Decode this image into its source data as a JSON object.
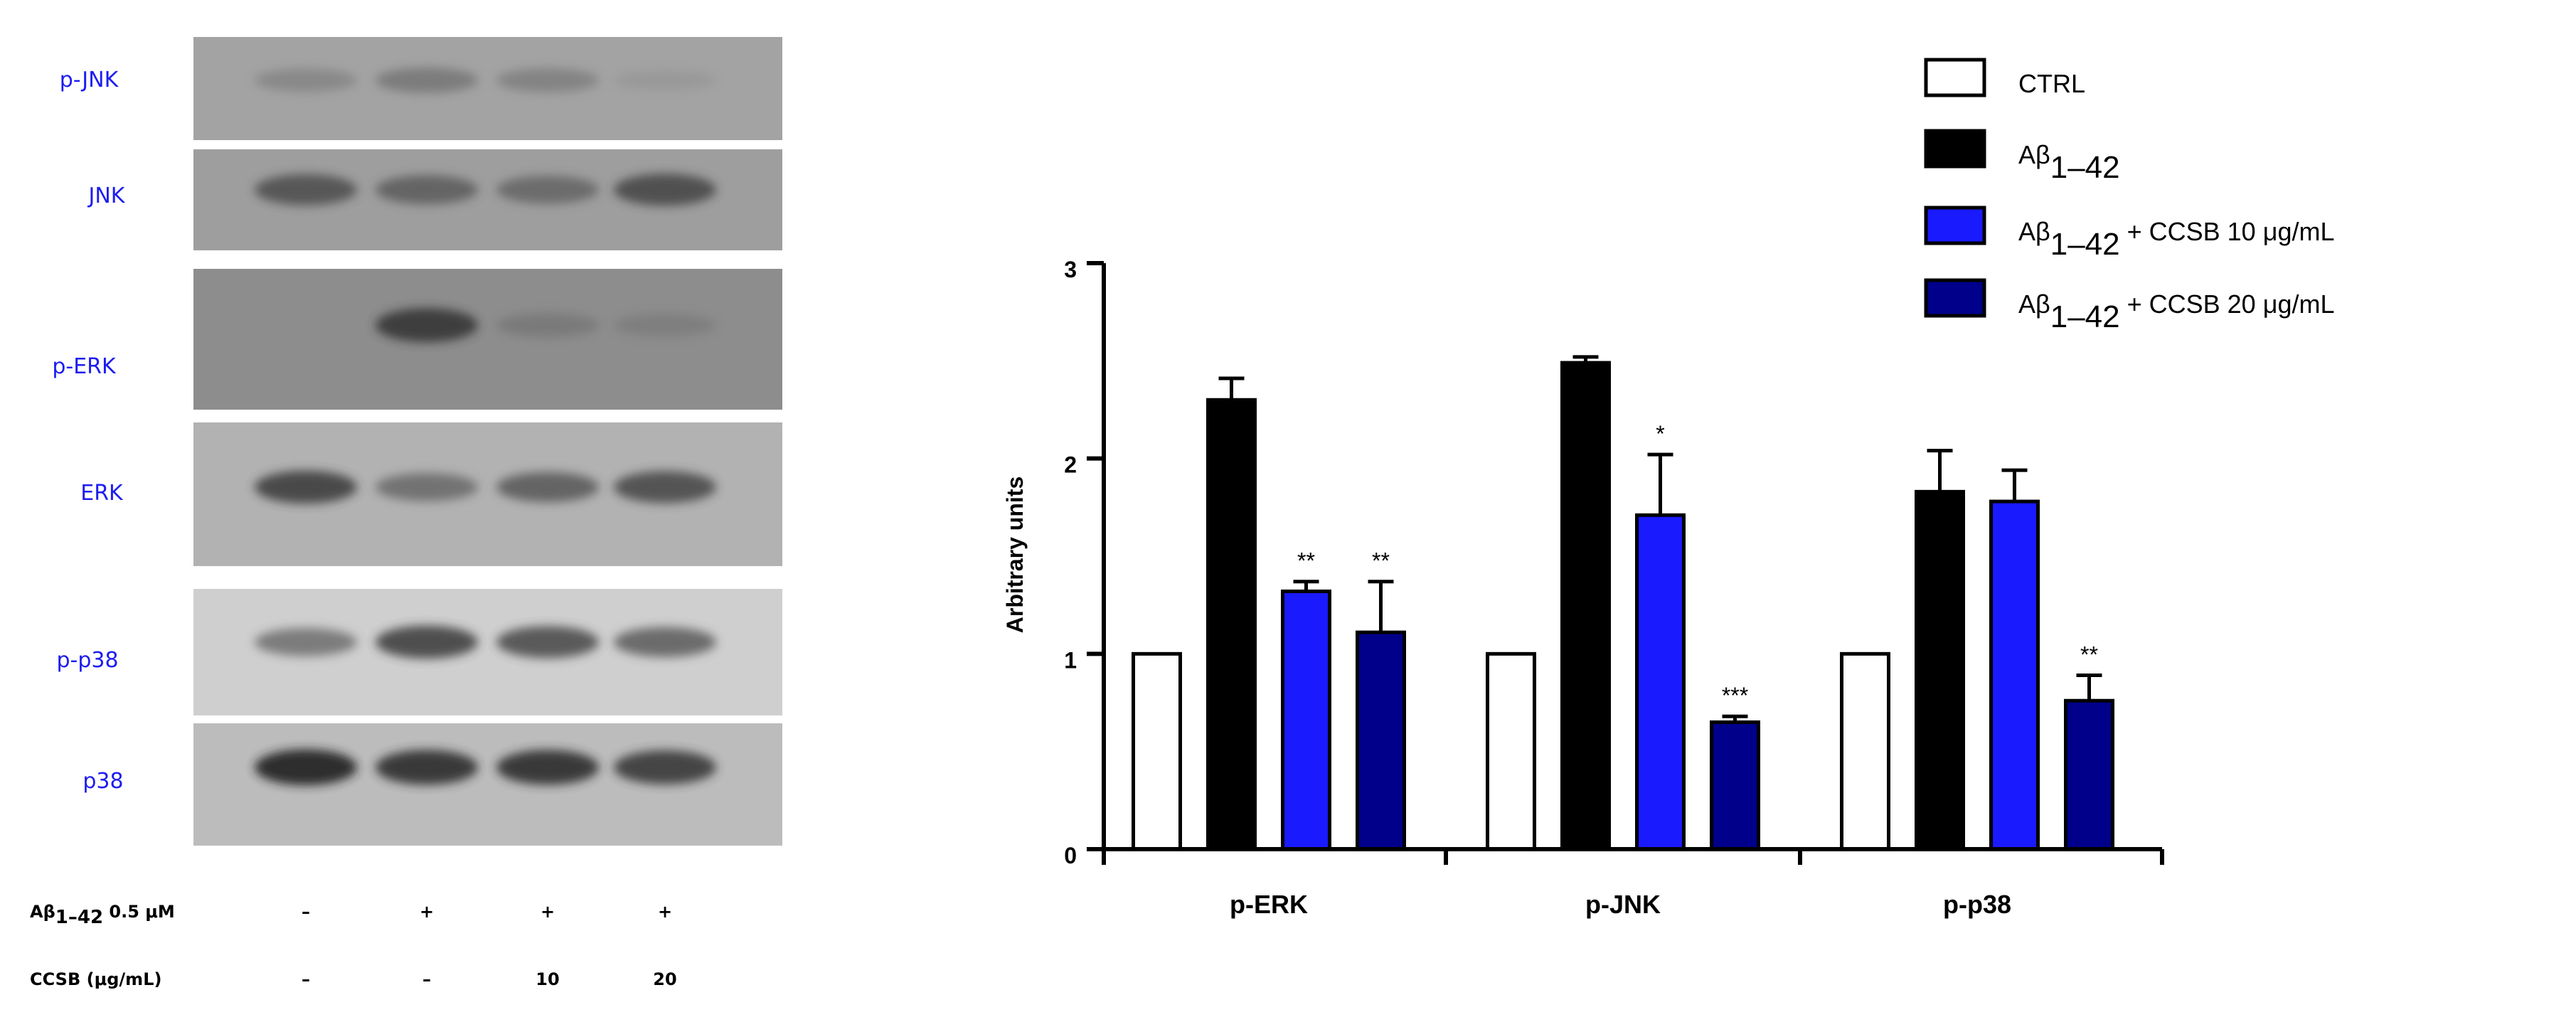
{
  "blot": {
    "row_labels": [
      "p-JNK",
      "JNK",
      "p-ERK",
      "ERK",
      "p-p38",
      "p38"
    ],
    "row_intensity": [
      [
        0.3,
        0.42,
        0.35,
        0.1
      ],
      [
        0.7,
        0.6,
        0.55,
        0.75
      ],
      [
        0.0,
        0.85,
        0.35,
        0.3
      ],
      [
        0.8,
        0.55,
        0.65,
        0.75
      ],
      [
        0.55,
        0.8,
        0.75,
        0.65
      ],
      [
        0.95,
        0.9,
        0.9,
        0.85
      ]
    ],
    "conditions": [
      {
        "label_main": "Aβ",
        "label_sub": "1–42",
        "label_rest": " 0.5 μM",
        "values": [
          "–",
          "+",
          "+",
          "+"
        ]
      },
      {
        "label_main": "CCSB (μg/mL)",
        "label_sub": "",
        "label_rest": "",
        "values": [
          "–",
          "–",
          "10",
          "20"
        ]
      }
    ]
  },
  "legend": [
    {
      "main": "CTRL",
      "sub": "",
      "rest": "",
      "fill": "#ffffff"
    },
    {
      "main": "Aβ",
      "sub": "1–42",
      "rest": "",
      "fill": "#000000"
    },
    {
      "main": "Aβ",
      "sub": "1–42",
      "rest": " + CCSB 10 μg/mL",
      "fill": "#1a1aff"
    },
    {
      "main": "Aβ",
      "sub": "1–42",
      "rest": " + CCSB 20 μg/mL",
      "fill": "#00008b"
    }
  ],
  "chart_data": {
    "type": "bar",
    "categories": [
      "p-ERK",
      "p-JNK",
      "p-p38"
    ],
    "ylabel": "Arbitrary units",
    "ylim": [
      0,
      3
    ],
    "yticks": [
      0,
      1,
      2,
      3
    ],
    "series": [
      {
        "name": "CTRL",
        "color": "#ffffff",
        "values": [
          1.0,
          1.0,
          1.0
        ],
        "errors": [
          0,
          0,
          0
        ],
        "sig": [
          "",
          "",
          ""
        ]
      },
      {
        "name": "Aβ1–42",
        "color": "#000000",
        "values": [
          2.3,
          2.49,
          1.83
        ],
        "errors": [
          0.11,
          0.03,
          0.21
        ],
        "sig": [
          "",
          "",
          ""
        ]
      },
      {
        "name": "Aβ1–42 + CCSB 10 μg/mL",
        "color": "#1a1aff",
        "values": [
          1.32,
          1.71,
          1.78
        ],
        "errors": [
          0.05,
          0.31,
          0.16
        ],
        "sig": [
          "**",
          "*",
          ""
        ]
      },
      {
        "name": "Aβ1–42 + CCSB 20 μg/mL",
        "color": "#00008b",
        "values": [
          1.11,
          0.65,
          0.76
        ],
        "errors": [
          0.26,
          0.03,
          0.13
        ],
        "sig": [
          "**",
          "***",
          "**"
        ]
      }
    ]
  }
}
